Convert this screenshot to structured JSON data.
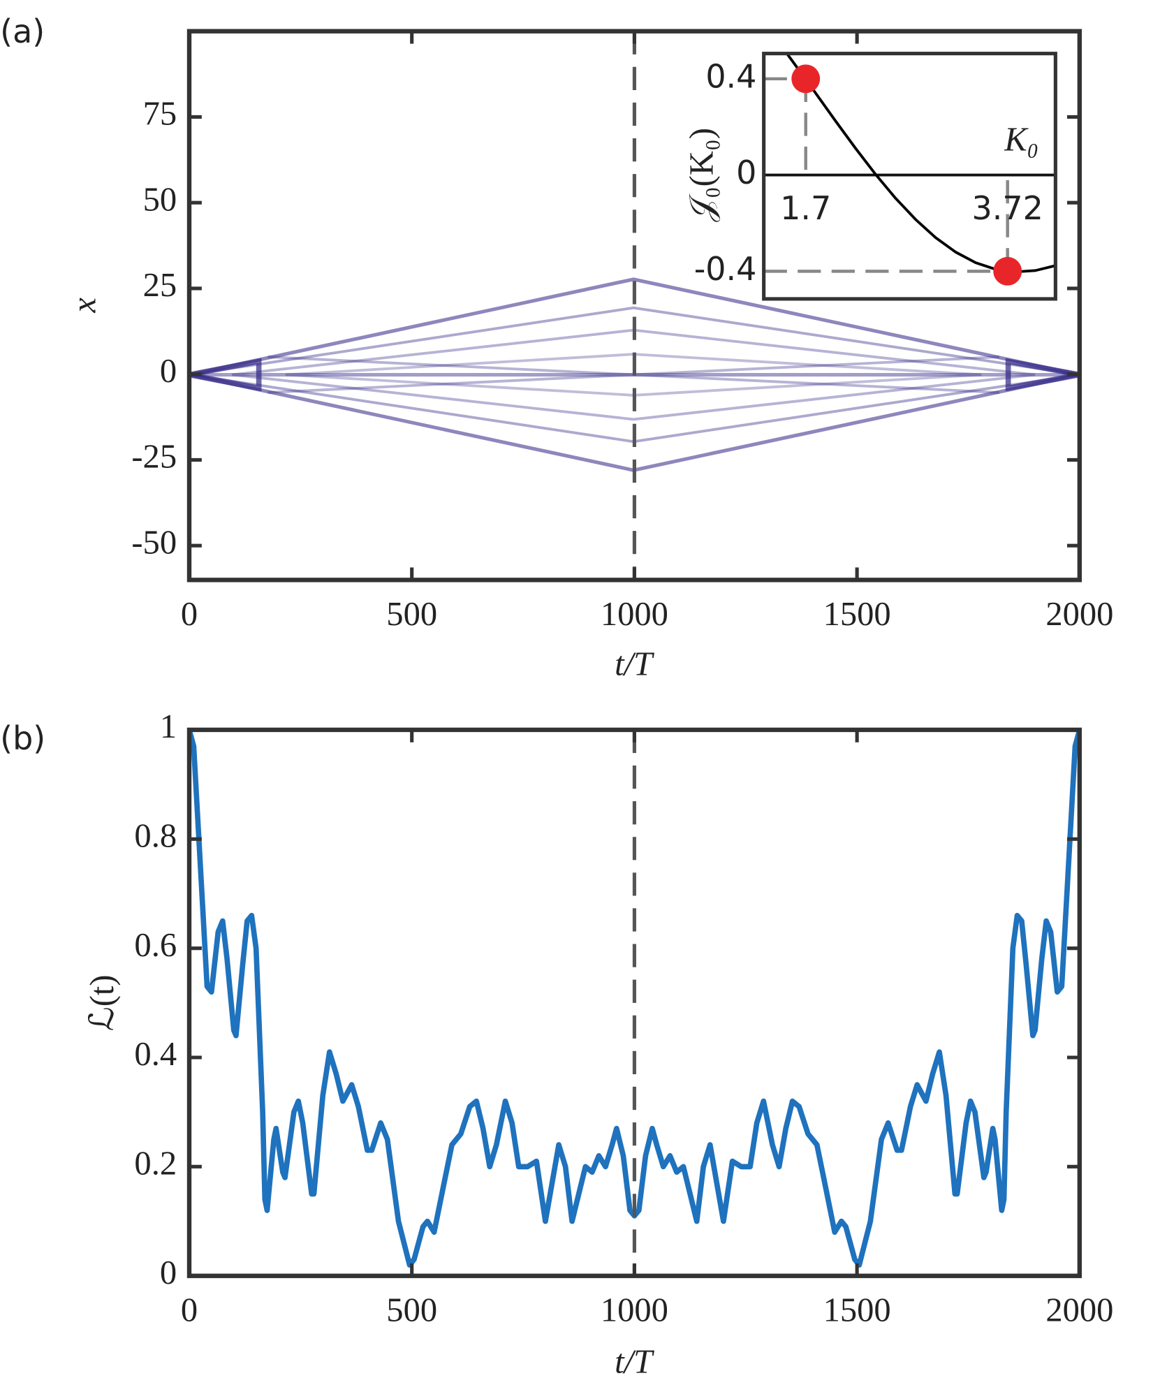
{
  "chart_data": [
    {
      "type": "heatmap",
      "label": "(a)",
      "xlabel": "t/T",
      "ylabel": "x",
      "xlim": [
        0,
        2000
      ],
      "ylim": [
        -60,
        100
      ],
      "xticks": [
        0,
        500,
        1000,
        1500,
        2000
      ],
      "yticks": [
        -50,
        -25,
        0,
        25,
        50,
        75
      ],
      "vline": 1000
    },
    {
      "type": "line",
      "xlabel": "K₀",
      "ylabel": "𝒥₀(K₀)",
      "x": [
        1.5,
        1.7,
        2.0,
        2.2,
        2.4,
        2.6,
        2.8,
        3.0,
        3.2,
        3.4,
        3.6,
        3.8,
        4.0,
        4.2
      ],
      "values": [
        0.5118,
        0.398,
        0.2239,
        0.1104,
        0.0025,
        -0.0968,
        -0.185,
        -0.2601,
        -0.3202,
        -0.3643,
        -0.3918,
        -0.4026,
        -0.3971,
        -0.3766
      ],
      "color": "#000000",
      "points": {
        "x": [
          1.7,
          3.72
        ],
        "values": [
          0.4,
          -0.4
        ],
        "color": "#e8262a"
      },
      "xlim": [
        1.28,
        4.2
      ],
      "ylim": [
        -0.515,
        0.505
      ],
      "xticks": [
        1.7,
        3.72
      ],
      "yticks": [
        -0.4,
        0,
        0.4
      ]
    },
    {
      "type": "line",
      "label": "(b)",
      "xlabel": "t/T",
      "ylabel": "ℒ(t)",
      "x": [
        0,
        10,
        25,
        40,
        50,
        65,
        75,
        85,
        100,
        105,
        120,
        130,
        140,
        150,
        165,
        170,
        175,
        190,
        195,
        210,
        215,
        235,
        245,
        255,
        275,
        280,
        300,
        315,
        330,
        345,
        365,
        380,
        400,
        410,
        430,
        445,
        470,
        495,
        505,
        525,
        535,
        550,
        570,
        590,
        610,
        630,
        645,
        660,
        675,
        690,
        710,
        725,
        740,
        760,
        780,
        800,
        815,
        830,
        845,
        860,
        875,
        890,
        905,
        920,
        935,
        950,
        960,
        975,
        990,
        1000,
        1010,
        1025,
        1040,
        1050,
        1065,
        1080,
        1095,
        1110,
        1125,
        1140,
        1155,
        1170,
        1185,
        1200,
        1220,
        1240,
        1260,
        1275,
        1290,
        1310,
        1325,
        1340,
        1355,
        1370,
        1390,
        1410,
        1430,
        1450,
        1465,
        1475,
        1495,
        1505,
        1530,
        1555,
        1570,
        1590,
        1600,
        1620,
        1635,
        1655,
        1670,
        1685,
        1700,
        1720,
        1725,
        1745,
        1755,
        1765,
        1785,
        1790,
        1805,
        1810,
        1825,
        1830,
        1835,
        1850,
        1860,
        1870,
        1880,
        1895,
        1900,
        1915,
        1925,
        1935,
        1950,
        1960,
        1975,
        1990,
        2000
      ],
      "values": [
        1.0,
        0.97,
        0.75,
        0.53,
        0.52,
        0.63,
        0.65,
        0.58,
        0.45,
        0.44,
        0.57,
        0.65,
        0.66,
        0.6,
        0.3,
        0.14,
        0.12,
        0.25,
        0.27,
        0.19,
        0.18,
        0.3,
        0.32,
        0.28,
        0.15,
        0.15,
        0.33,
        0.41,
        0.37,
        0.32,
        0.35,
        0.31,
        0.23,
        0.23,
        0.28,
        0.25,
        0.1,
        0.02,
        0.03,
        0.09,
        0.1,
        0.08,
        0.16,
        0.24,
        0.26,
        0.31,
        0.32,
        0.27,
        0.2,
        0.24,
        0.32,
        0.28,
        0.2,
        0.2,
        0.21,
        0.1,
        0.17,
        0.24,
        0.2,
        0.1,
        0.15,
        0.2,
        0.19,
        0.22,
        0.2,
        0.24,
        0.27,
        0.22,
        0.12,
        0.11,
        0.12,
        0.22,
        0.27,
        0.24,
        0.2,
        0.22,
        0.19,
        0.2,
        0.15,
        0.1,
        0.2,
        0.24,
        0.17,
        0.1,
        0.21,
        0.2,
        0.2,
        0.28,
        0.32,
        0.24,
        0.2,
        0.27,
        0.32,
        0.31,
        0.26,
        0.24,
        0.16,
        0.08,
        0.1,
        0.09,
        0.03,
        0.02,
        0.1,
        0.25,
        0.28,
        0.23,
        0.23,
        0.31,
        0.35,
        0.32,
        0.37,
        0.41,
        0.33,
        0.15,
        0.15,
        0.28,
        0.32,
        0.3,
        0.18,
        0.19,
        0.27,
        0.25,
        0.12,
        0.14,
        0.3,
        0.6,
        0.66,
        0.65,
        0.57,
        0.44,
        0.45,
        0.58,
        0.65,
        0.63,
        0.52,
        0.53,
        0.75,
        0.97,
        1.0
      ],
      "color": "#1f72bd",
      "xlim": [
        0,
        2000
      ],
      "ylim": [
        0,
        1
      ],
      "xticks": [
        0,
        500,
        1000,
        1500,
        2000
      ],
      "yticks": [
        0,
        0.2,
        0.4,
        0.6,
        0.8,
        1
      ],
      "vline": 1000
    }
  ]
}
